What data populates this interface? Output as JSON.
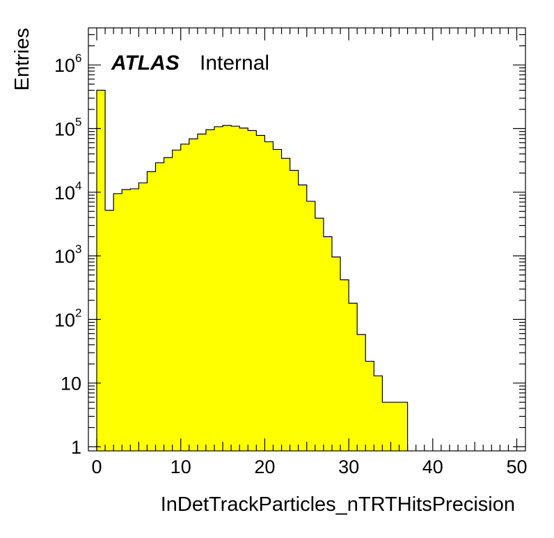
{
  "chart_data": {
    "type": "bar",
    "histogram": true,
    "title": "",
    "xlabel": "InDetTrackParticles_nTRTHitsPrecision",
    "ylabel": "Entries",
    "x_range": [
      0,
      50
    ],
    "y_range": [
      0.85,
      4000000
    ],
    "y_scale": "log",
    "bin_width": 1,
    "x_ticks": [
      0,
      10,
      20,
      30,
      40,
      50
    ],
    "x_tick_labels": [
      "0",
      "10",
      "20",
      "30",
      "40",
      "50"
    ],
    "y_ticks": [
      {
        "value": 1,
        "label": "1",
        "exponent": ""
      },
      {
        "value": 10,
        "label": "10",
        "exponent": ""
      },
      {
        "value": 100,
        "label": "10",
        "exponent": "2"
      },
      {
        "value": 1000,
        "label": "10",
        "exponent": "3"
      },
      {
        "value": 10000,
        "label": "10",
        "exponent": "4"
      },
      {
        "value": 100000,
        "label": "10",
        "exponent": "5"
      },
      {
        "value": 1000000,
        "label": "10",
        "exponent": "6"
      }
    ],
    "bin_low_edges": [
      0,
      1,
      2,
      3,
      4,
      5,
      6,
      7,
      8,
      9,
      10,
      11,
      12,
      13,
      14,
      15,
      16,
      17,
      18,
      19,
      20,
      21,
      22,
      23,
      24,
      25,
      26,
      27,
      28,
      29,
      30,
      31,
      32,
      33,
      34,
      35,
      36
    ],
    "values": [
      400000,
      5200,
      9500,
      11000,
      11300,
      14000,
      21000,
      29000,
      35000,
      46000,
      57000,
      69000,
      82000,
      96000,
      107000,
      112000,
      109000,
      102000,
      93000,
      78000,
      62000,
      47000,
      34000,
      22000,
      13000,
      7200,
      3900,
      2000,
      960,
      420,
      180,
      58,
      22,
      13,
      5,
      5,
      5
    ],
    "fill_color": "#ffff00",
    "line_color": "#000000",
    "grid": false,
    "legend": "none"
  },
  "annotations": {
    "experiment": "ATLAS",
    "status": "Internal"
  }
}
